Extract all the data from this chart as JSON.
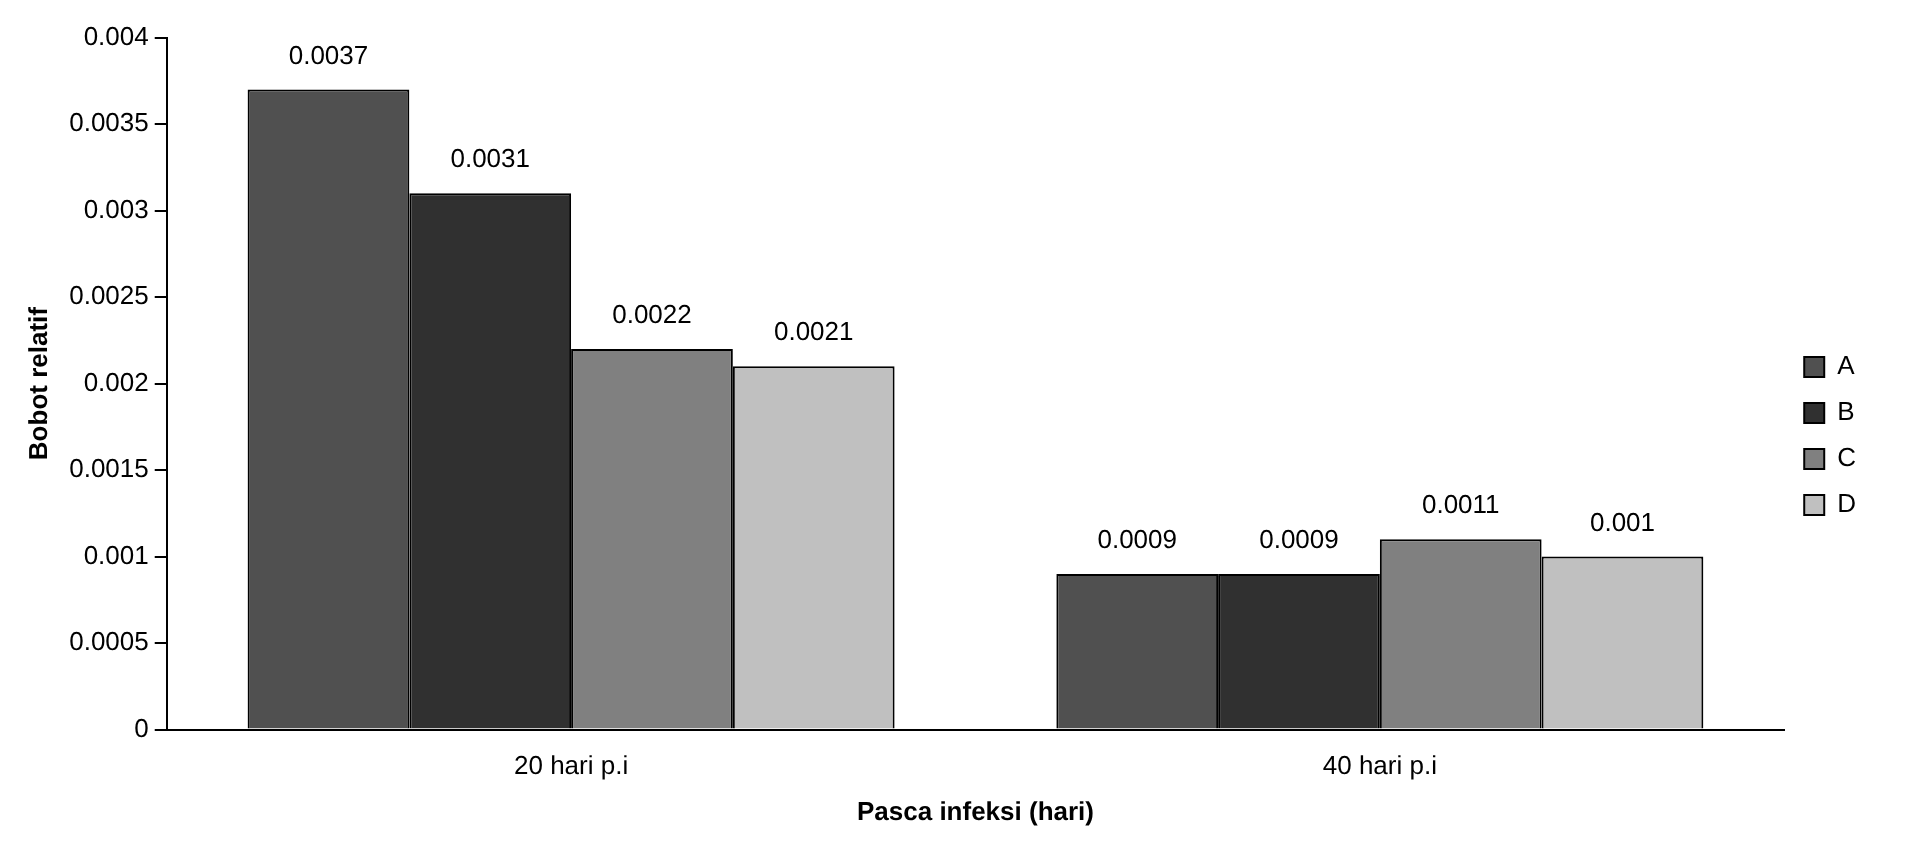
{
  "chart_data": {
    "type": "bar",
    "xlabel": "Pasca infeksi (hari)",
    "ylabel": "Bobot relatif",
    "categories": [
      "20 hari p.i",
      "40 hari p.i"
    ],
    "series": [
      {
        "name": "A",
        "color": "#505050",
        "values": [
          0.0037,
          0.0009
        ]
      },
      {
        "name": "B",
        "color": "#303030",
        "values": [
          0.0031,
          0.0009
        ]
      },
      {
        "name": "C",
        "color": "#808080",
        "values": [
          0.0022,
          0.0011
        ]
      },
      {
        "name": "D",
        "color": "#c0c0c0",
        "values": [
          0.0021,
          0.001
        ]
      }
    ],
    "ylim": [
      0,
      0.004
    ],
    "yticks": [
      0,
      0.0005,
      0.001,
      0.0015,
      0.002,
      0.0025,
      0.003,
      0.0035,
      0.004
    ],
    "data_labels": true,
    "legend": "right",
    "grid": false
  }
}
